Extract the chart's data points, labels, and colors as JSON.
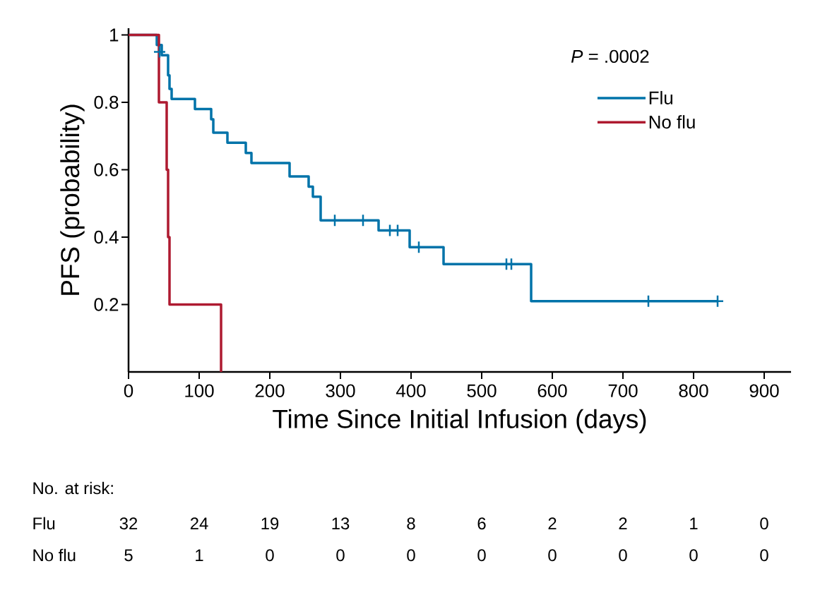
{
  "chart_data": {
    "type": "step",
    "xlabel": "Time Since Initial Infusion (days)",
    "ylabel": "PFS (probability)",
    "xlim": [
      0,
      938
    ],
    "ylim": [
      0,
      1.02
    ],
    "xticks": [
      0,
      100,
      200,
      300,
      400,
      500,
      600,
      700,
      800,
      900
    ],
    "yticks": [
      0.2,
      0.4,
      0.6,
      0.8,
      1
    ],
    "legend": "top right",
    "series": [
      {
        "name": "Flu",
        "color": "#0073a9",
        "marker": "none",
        "x": [
          0,
          40,
          47,
          56,
          58,
          61,
          94,
          117,
          120,
          140,
          166,
          174,
          228,
          255,
          261,
          272,
          354,
          398,
          446,
          570,
          834
        ],
        "values": [
          1,
          0.97,
          0.94,
          0.88,
          0.84,
          0.81,
          0.78,
          0.75,
          0.71,
          0.68,
          0.65,
          0.62,
          0.58,
          0.55,
          0.52,
          0.45,
          0.42,
          0.37,
          0.32,
          0.21,
          0.21
        ]
      },
      {
        "name": "No flu",
        "color": "#ae1a30",
        "marker": "none",
        "x": [
          0,
          43,
          54,
          56,
          58,
          131
        ],
        "values": [
          1,
          0.8,
          0.6,
          0.4,
          0.2,
          0
        ]
      },
      {
        "type": "scatter",
        "color": "#0073a9",
        "marker": "cross",
        "x": [
          44,
          292,
          332,
          370,
          381,
          411,
          535,
          542,
          736,
          834
        ],
        "values": [
          0.95,
          0.45,
          0.45,
          0.42,
          0.42,
          0.37,
          0.32,
          0.32,
          0.21,
          0.21
        ]
      }
    ],
    "annotations": [
      "*P* = .0002",
      "No. at risk:",
      "Flu",
      "32",
      "24",
      "19",
      "13",
      "8",
      "6",
      "2",
      "2",
      "1",
      "0",
      "No flu",
      "5",
      "1",
      "0",
      "0",
      "0",
      "0",
      "0",
      "0",
      "0",
      "0"
    ]
  }
}
